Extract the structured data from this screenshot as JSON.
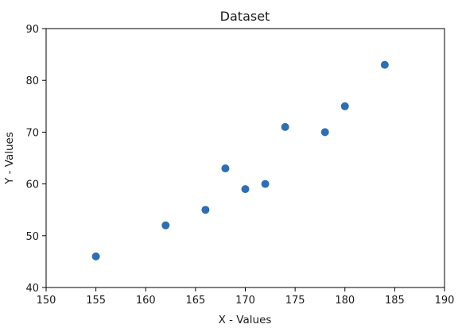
{
  "chart_data": {
    "type": "scatter",
    "title": "Dataset",
    "xlabel": "X - Values",
    "ylabel": "Y - Values",
    "xlim": [
      150,
      190
    ],
    "ylim": [
      40,
      90
    ],
    "xticks": [
      150,
      155,
      160,
      165,
      170,
      175,
      180,
      185,
      190
    ],
    "yticks": [
      40,
      50,
      60,
      70,
      80,
      90
    ],
    "xtick_labels": [
      "150",
      "155",
      "160",
      "165",
      "170",
      "175",
      "180",
      "185",
      "190"
    ],
    "ytick_labels": [
      "40",
      "50",
      "60",
      "70",
      "80",
      "90"
    ],
    "grid": false,
    "legend": false,
    "marker_color": "#2f6eb0",
    "series": [
      {
        "points": [
          {
            "x": 155,
            "y": 46
          },
          {
            "x": 162,
            "y": 52
          },
          {
            "x": 166,
            "y": 55
          },
          {
            "x": 168,
            "y": 63
          },
          {
            "x": 170,
            "y": 59
          },
          {
            "x": 172,
            "y": 60
          },
          {
            "x": 174,
            "y": 71
          },
          {
            "x": 178,
            "y": 70
          },
          {
            "x": 180,
            "y": 75
          },
          {
            "x": 184,
            "y": 83
          }
        ]
      }
    ]
  }
}
